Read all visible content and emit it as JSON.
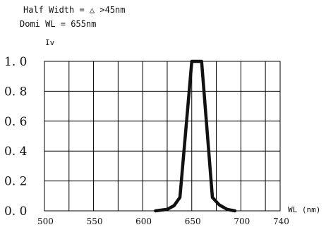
{
  "annotations": {
    "half_width": "Half Width = △ >45nm",
    "dominant_wl": "Domi WL = 655nm"
  },
  "chart_data": {
    "type": "line",
    "ylabel": "Iv",
    "xlabel": "WL (nm)",
    "xlim": [
      500,
      740
    ],
    "ylim": [
      0,
      1.0
    ],
    "x_ticks": [
      500,
      550,
      600,
      650,
      700,
      740
    ],
    "x_tick_labels": [
      "500",
      "550",
      "600",
      "650",
      "700",
      "740"
    ],
    "y_ticks": [
      0,
      0.2,
      0.4,
      0.6,
      0.8,
      1.0
    ],
    "y_tick_labels": [
      "0. 0",
      "0. 2",
      "0. 4",
      "0. 6",
      "0. 8",
      "1. 0"
    ],
    "grid": true,
    "series": [
      {
        "color": "#111111",
        "x": [
          613,
          625,
          632,
          638,
          650,
          652,
          656,
          660,
          671,
          678,
          686,
          694
        ],
        "y": [
          0.0,
          0.01,
          0.035,
          0.09,
          1.0,
          1.0,
          1.0,
          1.0,
          0.09,
          0.04,
          0.01,
          0.0
        ]
      }
    ]
  }
}
